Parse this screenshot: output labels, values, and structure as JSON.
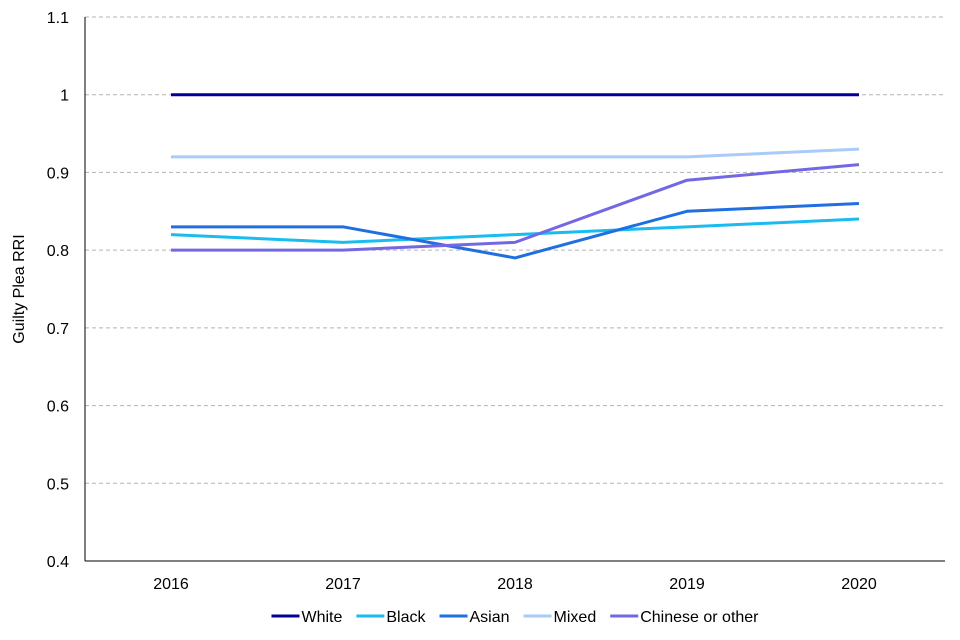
{
  "chart_data": {
    "type": "line",
    "title": "",
    "xlabel": "",
    "ylabel": "Guilty Plea RRI",
    "categories": [
      "2016",
      "2017",
      "2018",
      "2019",
      "2020"
    ],
    "ylim": [
      0.4,
      1.1
    ],
    "yticks": [
      "0.4",
      "0.5",
      "0.6",
      "0.7",
      "0.8",
      "0.9",
      "1",
      "1.1"
    ],
    "grid": "horizontal dashed",
    "legend_position": "bottom",
    "series": [
      {
        "name": "White",
        "color": "#000099",
        "values": [
          1.0,
          1.0,
          1.0,
          1.0,
          1.0
        ]
      },
      {
        "name": "Black",
        "color": "#1ABCF0",
        "values": [
          0.82,
          0.81,
          0.82,
          0.83,
          0.84
        ]
      },
      {
        "name": "Asian",
        "color": "#1F6FE0",
        "values": [
          0.83,
          0.83,
          0.79,
          0.85,
          0.86
        ]
      },
      {
        "name": "Mixed",
        "color": "#A9CBF7",
        "values": [
          0.92,
          0.92,
          0.92,
          0.92,
          0.93
        ]
      },
      {
        "name": "Chinese or other",
        "color": "#7367E3",
        "values": [
          0.8,
          0.8,
          0.81,
          0.89,
          0.91
        ]
      }
    ]
  }
}
